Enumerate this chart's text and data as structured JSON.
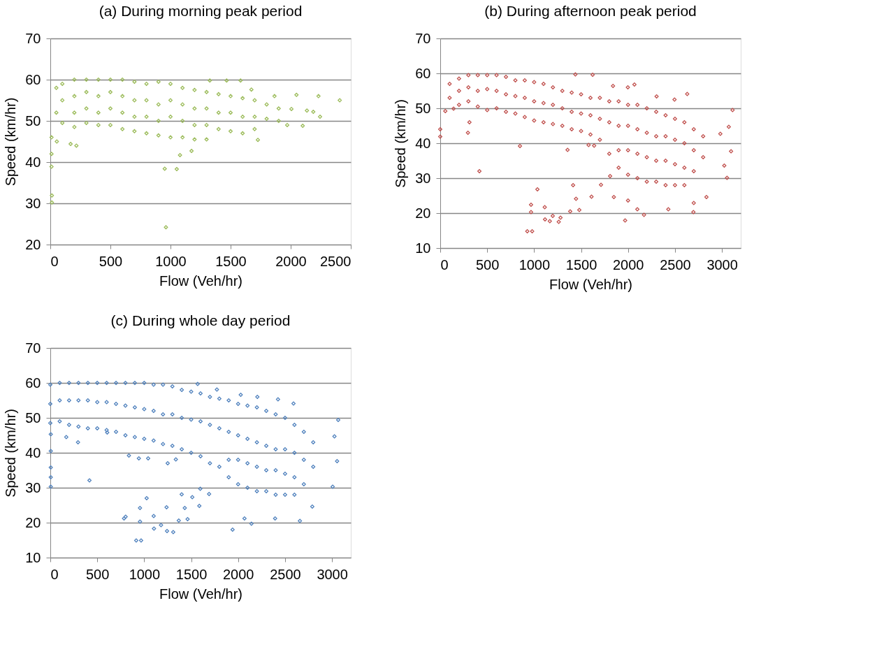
{
  "chart_data": [
    {
      "type": "scatter",
      "title": "(a) During morning peak period",
      "xlabel": "Flow (Veh/hr)",
      "ylabel": "Speed (km/hr)",
      "color": "#9bbb59",
      "marker": "diamond",
      "grid": "y",
      "xlim": [
        0,
        2500
      ],
      "ylim": [
        20,
        70
      ],
      "xticks": [
        0,
        500,
        1000,
        1500,
        2000,
        2500
      ],
      "yticks": [
        20,
        30,
        40,
        50,
        60,
        70
      ],
      "x": [
        50,
        50,
        100,
        100,
        100,
        200,
        200,
        200,
        200,
        300,
        300,
        300,
        300,
        400,
        400,
        400,
        400,
        500,
        500,
        500,
        500,
        600,
        600,
        600,
        600,
        700,
        700,
        700,
        700,
        800,
        800,
        800,
        800,
        900,
        900,
        900,
        900,
        1000,
        1000,
        1000,
        1000,
        1100,
        1100,
        1100,
        1100,
        1200,
        1200,
        1200,
        1200,
        1300,
        1300,
        1300,
        1300,
        1400,
        1400,
        1400,
        1500,
        1500,
        1500,
        1600,
        1600,
        1600,
        1700,
        1700,
        1700,
        1800,
        1800,
        1900,
        1900,
        2048,
        2231,
        2408,
        2244,
        2100,
        2188,
        2135,
        962,
        952,
        1052,
        1079,
        169,
        217,
        10,
        13,
        13,
        10,
        10,
        54,
        1583,
        1467,
        1327,
        2006,
        1971,
        1727,
        1175,
        1865,
        1673
      ],
      "values": [
        58,
        52,
        59,
        55,
        49.5,
        60,
        56,
        52,
        48.5,
        60,
        57,
        53,
        49.5,
        60,
        56,
        52,
        49,
        60,
        57,
        53,
        49,
        60,
        56,
        52,
        48,
        59.5,
        55,
        51,
        47.5,
        59,
        55,
        51,
        47,
        59.5,
        54,
        50,
        46.5,
        59,
        55,
        51,
        46,
        58,
        54,
        50,
        46,
        57.5,
        53,
        49,
        45.5,
        57,
        53,
        49,
        45.5,
        56.5,
        52,
        48,
        56,
        52,
        47.5,
        55.5,
        51,
        47,
        55,
        51,
        48,
        54,
        50.5,
        53,
        50,
        56.3,
        56,
        55,
        51,
        48.8,
        52.2,
        52.5,
        24.2,
        38.4,
        38.3,
        41.7,
        44.4,
        44,
        38.9,
        30.2,
        31.9,
        42,
        46,
        45,
        59.8,
        59.8,
        59.8,
        52.9,
        49,
        45.4,
        42.7,
        56,
        57.6
      ]
    },
    {
      "type": "scatter",
      "title": "(b) During afternoon peak period",
      "xlabel": "Flow (Veh/hr)",
      "ylabel": "Speed (km/hr)",
      "color": "#c0504d",
      "marker": "diamond",
      "grid": "y",
      "xlim": [
        0,
        3200
      ],
      "ylim": [
        10,
        70
      ],
      "xticks": [
        0,
        500,
        1000,
        1500,
        2000,
        2500,
        3000
      ],
      "yticks": [
        10,
        20,
        30,
        40,
        50,
        60,
        70
      ],
      "x": [
        100,
        100,
        200,
        200,
        200,
        300,
        300,
        300,
        400,
        400,
        400,
        500,
        500,
        500,
        600,
        600,
        600,
        700,
        700,
        700,
        800,
        800,
        800,
        900,
        900,
        900,
        1000,
        1000,
        1000,
        1100,
        1100,
        1100,
        1200,
        1200,
        1200,
        1300,
        1300,
        1300,
        1400,
        1400,
        1400,
        1500,
        1500,
        1500,
        1600,
        1600,
        1600,
        1700,
        1700,
        1700,
        1800,
        1800,
        1800,
        1900,
        1900,
        1900,
        1900,
        2000,
        2000,
        2000,
        2000,
        2100,
        2100,
        2100,
        2100,
        2200,
        2200,
        2200,
        2200,
        2300,
        2300,
        2300,
        2300,
        2400,
        2400,
        2400,
        2400,
        2500,
        2500,
        2500,
        2500,
        2600,
        2600,
        2600,
        2600,
        2700,
        2700,
        2700,
        2800,
        2800,
        0,
        0,
        849,
        417,
        1035,
        967,
        967,
        927,
        979,
        1113,
        1116,
        1167,
        1262,
        1281,
        1198,
        1384,
        1481,
        1446,
        1415,
        1611,
        1712,
        1809,
        1849,
        1969,
        2000,
        2099,
        2170,
        2429,
        2696,
        2700,
        2835,
        3054,
        3113,
        3097,
        3025,
        3073,
        2983,
        2630,
        2495,
        2304,
        2068,
        1998,
        1840,
        1623,
        1439,
        295,
        311,
        54,
        142,
        1356,
        1580,
        1639
      ],
      "values": [
        57,
        53,
        58.5,
        55,
        51,
        59.5,
        56,
        52,
        59.5,
        55,
        50.5,
        59.5,
        55.5,
        49.5,
        59.5,
        55,
        50,
        59,
        54,
        49,
        58,
        53.5,
        48.5,
        58,
        53,
        47.5,
        57.5,
        52,
        46.5,
        57,
        51.5,
        46,
        56,
        51,
        45.5,
        55,
        50,
        45,
        54.5,
        49,
        44,
        54,
        48.5,
        43.5,
        53,
        48,
        42.5,
        53,
        47,
        41,
        52,
        46,
        37,
        52,
        45,
        38,
        33,
        51,
        45,
        38,
        31,
        51,
        44,
        37,
        30,
        50,
        43,
        36,
        29,
        49,
        42,
        35,
        29,
        48,
        42,
        35,
        28,
        47,
        41,
        34,
        28,
        46,
        40,
        33,
        28,
        44,
        38,
        32,
        42,
        36,
        41.9,
        44,
        39.2,
        32,
        26.8,
        22.4,
        20.3,
        14.8,
        14.8,
        21.7,
        18.2,
        17.7,
        17.5,
        18.7,
        19.2,
        20.5,
        20.9,
        24.1,
        28,
        24.7,
        28.1,
        30.6,
        24.6,
        17.9,
        23.6,
        21.1,
        19.5,
        21.1,
        20.3,
        22.9,
        24.6,
        30.1,
        49.5,
        37.7,
        33.6,
        44.7,
        42.7,
        54.1,
        52.5,
        53.4,
        56.8,
        56,
        56.4,
        59.6,
        59.7,
        43,
        46,
        49.2,
        49.9,
        38.1,
        39.5,
        39.3
      ]
    },
    {
      "type": "scatter",
      "title": "(c) During whole day period",
      "xlabel": "Flow (Veh/hr)",
      "ylabel": "Speed (km/hr)",
      "color": "#4f81bd",
      "marker": "diamond",
      "grid": "y",
      "xlim": [
        0,
        3200
      ],
      "ylim": [
        10,
        70
      ],
      "xticks": [
        0,
        500,
        1000,
        1500,
        2000,
        2500,
        3000
      ],
      "yticks": [
        10,
        20,
        30,
        40,
        50,
        60,
        70
      ],
      "x": [
        0,
        0,
        0,
        100,
        100,
        100,
        200,
        200,
        200,
        300,
        300,
        300,
        400,
        400,
        400,
        500,
        500,
        500,
        600,
        600,
        600,
        700,
        700,
        700,
        800,
        800,
        800,
        900,
        900,
        900,
        1000,
        1000,
        1000,
        1100,
        1100,
        1100,
        1200,
        1200,
        1200,
        1300,
        1300,
        1300,
        1400,
        1400,
        1400,
        1500,
        1500,
        1500,
        1600,
        1600,
        1600,
        1700,
        1700,
        1700,
        1800,
        1800,
        1800,
        1900,
        1900,
        1900,
        1900,
        2000,
        2000,
        2000,
        2000,
        2100,
        2100,
        2100,
        2100,
        2200,
        2200,
        2200,
        2200,
        2300,
        2300,
        2300,
        2300,
        2400,
        2400,
        2400,
        2400,
        2500,
        2500,
        2500,
        2500,
        2600,
        2600,
        2600,
        2600,
        2700,
        2700,
        2700,
        2800,
        2800,
        5,
        5,
        5,
        5,
        5,
        417,
        785,
        802,
        915,
        967,
        955,
        955,
        1026,
        1101,
        1104,
        1179,
        1243,
        1309,
        1238,
        1368,
        1462,
        1432,
        1399,
        1512,
        1587,
        1691,
        1597,
        1941,
        2068,
        2142,
        2394,
        2658,
        2790,
        3007,
        3066,
        3054,
        3026,
        2590,
        2425,
        2205,
        2028,
        1774,
        1569,
        837,
        943,
        1042,
        1250,
        1337,
        295,
        606,
        170
      ],
      "values": [
        59.5,
        54,
        48.5,
        60,
        55,
        49,
        60,
        55,
        48,
        60,
        55,
        47.5,
        60,
        55,
        47,
        60,
        54.5,
        47,
        60,
        54.5,
        46.5,
        60,
        54,
        46,
        60,
        53.5,
        45,
        60,
        53,
        44.5,
        60,
        52.5,
        44,
        59.5,
        52,
        43.5,
        59.5,
        51,
        42.5,
        59,
        51,
        42,
        58,
        50,
        41,
        57.5,
        49.5,
        40,
        57,
        49,
        39,
        56,
        48,
        37,
        55.5,
        47,
        36,
        55,
        46,
        38,
        33,
        54,
        45,
        38,
        31,
        53.5,
        44,
        37,
        30,
        53,
        43,
        36,
        29,
        52,
        42,
        35,
        29,
        51,
        41,
        35,
        28,
        50,
        41,
        34,
        28,
        48,
        40,
        33,
        28,
        46,
        38,
        31,
        43,
        36,
        35.8,
        30.3,
        33,
        40.5,
        45.3,
        32.1,
        21.2,
        21.7,
        14.9,
        14.9,
        24.2,
        20.3,
        27,
        21.9,
        18.3,
        19.3,
        17.6,
        17.3,
        24.4,
        20.6,
        21,
        24.2,
        28.1,
        27.3,
        24.8,
        28.2,
        29.7,
        18,
        21.2,
        19.7,
        21.2,
        20.5,
        24.6,
        30.3,
        49.4,
        37.6,
        44.7,
        54.1,
        55.3,
        56,
        56.6,
        58.1,
        59.7,
        39.2,
        38.4,
        38.4,
        37,
        38.1,
        43,
        45.8,
        44.5
      ]
    }
  ]
}
